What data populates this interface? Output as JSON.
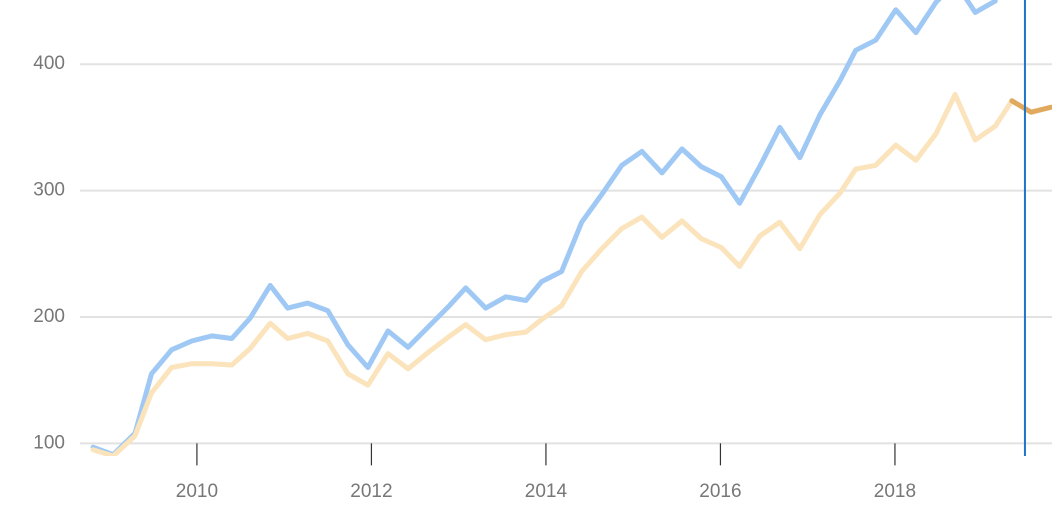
{
  "chart_data": {
    "type": "line",
    "x": [
      2008.81,
      2009.04,
      2009.29,
      2009.48,
      2009.71,
      2009.94,
      2010.17,
      2010.4,
      2010.61,
      2010.84,
      2011.04,
      2011.27,
      2011.5,
      2011.73,
      2011.96,
      2012.19,
      2012.42,
      2012.65,
      2012.88,
      2013.08,
      2013.31,
      2013.54,
      2013.77,
      2013.95,
      2014.18,
      2014.41,
      2014.64,
      2014.87,
      2015.1,
      2015.33,
      2015.56,
      2015.78,
      2016.01,
      2016.22,
      2016.45,
      2016.68,
      2016.91,
      2017.14,
      2017.37,
      2017.55,
      2017.78,
      2018.01,
      2018.24,
      2018.47,
      2018.69,
      2018.92,
      2019.15,
      2019.34,
      2019.56,
      2019.79
    ],
    "series": [
      {
        "color": "#9fc9f4",
        "values": [
          97,
          91,
          108,
          155,
          174,
          181,
          185,
          183,
          199,
          225,
          207,
          211,
          205,
          178,
          160,
          189,
          176,
          192,
          208,
          223,
          207,
          216,
          213,
          228,
          236,
          275,
          297,
          320,
          331,
          314,
          333,
          319,
          311,
          290,
          319,
          350,
          326,
          360,
          387,
          411,
          419,
          443,
          425,
          449,
          465,
          441,
          450,
          null,
          null,
          null
        ]
      },
      {
        "color": "#fbe3bb",
        "values": [
          95,
          90,
          106,
          140,
          160,
          163,
          163,
          162,
          175,
          195,
          183,
          187,
          181,
          155,
          146,
          171,
          159,
          172,
          184,
          194,
          182,
          186,
          188,
          198,
          209,
          236,
          254,
          270,
          279,
          263,
          276,
          262,
          255,
          240,
          264,
          275,
          254,
          281,
          298,
          317,
          320,
          336,
          324,
          345,
          376,
          340,
          351,
          371,
          null,
          null
        ]
      },
      {
        "color": "#e0a95e",
        "values": [
          null,
          null,
          null,
          null,
          null,
          null,
          null,
          null,
          null,
          null,
          null,
          null,
          null,
          null,
          null,
          null,
          null,
          null,
          null,
          null,
          null,
          null,
          null,
          null,
          null,
          null,
          null,
          null,
          null,
          null,
          null,
          null,
          null,
          null,
          null,
          null,
          null,
          null,
          null,
          null,
          null,
          null,
          null,
          null,
          null,
          null,
          null,
          371,
          362,
          366
        ]
      }
    ],
    "xlim": [
      2008.66,
      2019.8
    ],
    "xticks": [
      2010,
      2012,
      2014,
      2016,
      2018
    ],
    "ylim": [
      90,
      450
    ],
    "yticks": [
      100,
      200,
      300,
      400
    ],
    "grid": true,
    "cursor_x": 2019.49,
    "cursor_color": "#1f74cc"
  }
}
